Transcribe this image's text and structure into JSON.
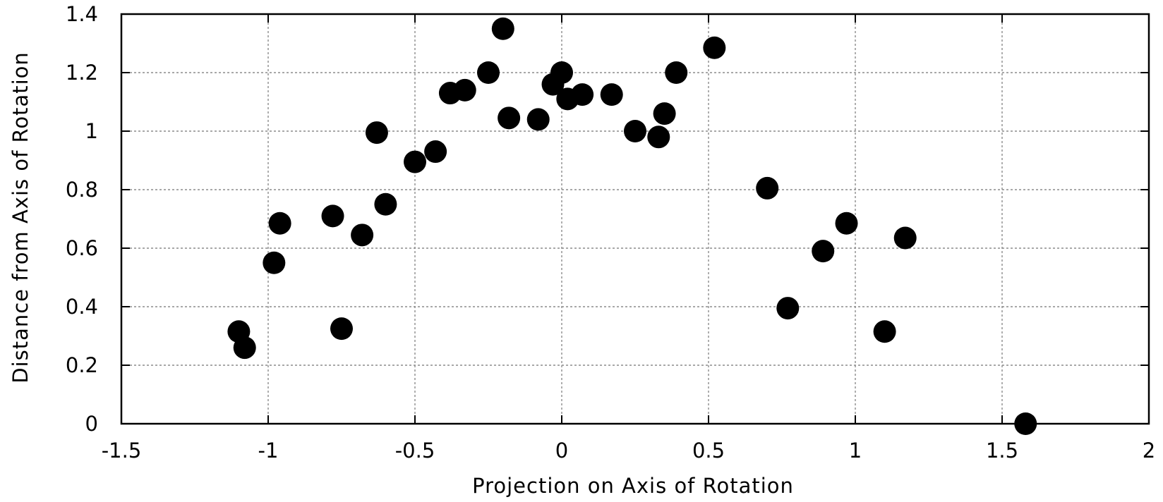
{
  "chart_data": {
    "type": "scatter",
    "title": "",
    "xlabel": "Projection on Axis of Rotation",
    "ylabel": "Distance from Axis of Rotation",
    "xlim": [
      -1.5,
      2
    ],
    "ylim": [
      0,
      1.4
    ],
    "xticks": [
      "-1.5",
      "-1",
      "-0.5",
      "0",
      "0.5",
      "1",
      "1.5",
      "2"
    ],
    "yticks": [
      "0",
      "0.2",
      "0.4",
      "0.6",
      "0.8",
      "1",
      "1.2",
      "1.4"
    ],
    "grid": true,
    "marker_color": "#000000",
    "points": [
      {
        "x": -1.1,
        "y": 0.315
      },
      {
        "x": -1.08,
        "y": 0.26
      },
      {
        "x": -0.98,
        "y": 0.55
      },
      {
        "x": -0.96,
        "y": 0.685
      },
      {
        "x": -0.78,
        "y": 0.71
      },
      {
        "x": -0.75,
        "y": 0.325
      },
      {
        "x": -0.68,
        "y": 0.645
      },
      {
        "x": -0.63,
        "y": 0.995
      },
      {
        "x": -0.6,
        "y": 0.75
      },
      {
        "x": -0.5,
        "y": 0.895
      },
      {
        "x": -0.43,
        "y": 0.93
      },
      {
        "x": -0.38,
        "y": 1.13
      },
      {
        "x": -0.33,
        "y": 1.14
      },
      {
        "x": -0.25,
        "y": 1.2
      },
      {
        "x": -0.2,
        "y": 1.35
      },
      {
        "x": -0.18,
        "y": 1.045
      },
      {
        "x": -0.08,
        "y": 1.04
      },
      {
        "x": -0.03,
        "y": 1.16
      },
      {
        "x": 0.0,
        "y": 1.2
      },
      {
        "x": 0.02,
        "y": 1.11
      },
      {
        "x": 0.07,
        "y": 1.125
      },
      {
        "x": 0.17,
        "y": 1.125
      },
      {
        "x": 0.25,
        "y": 1.0
      },
      {
        "x": 0.33,
        "y": 0.98
      },
      {
        "x": 0.35,
        "y": 1.06
      },
      {
        "x": 0.39,
        "y": 1.2
      },
      {
        "x": 0.52,
        "y": 1.285
      },
      {
        "x": 0.7,
        "y": 0.805
      },
      {
        "x": 0.77,
        "y": 0.395
      },
      {
        "x": 0.89,
        "y": 0.59
      },
      {
        "x": 0.97,
        "y": 0.685
      },
      {
        "x": 1.1,
        "y": 0.315
      },
      {
        "x": 1.17,
        "y": 0.635
      },
      {
        "x": 1.58,
        "y": 0.0
      }
    ]
  }
}
